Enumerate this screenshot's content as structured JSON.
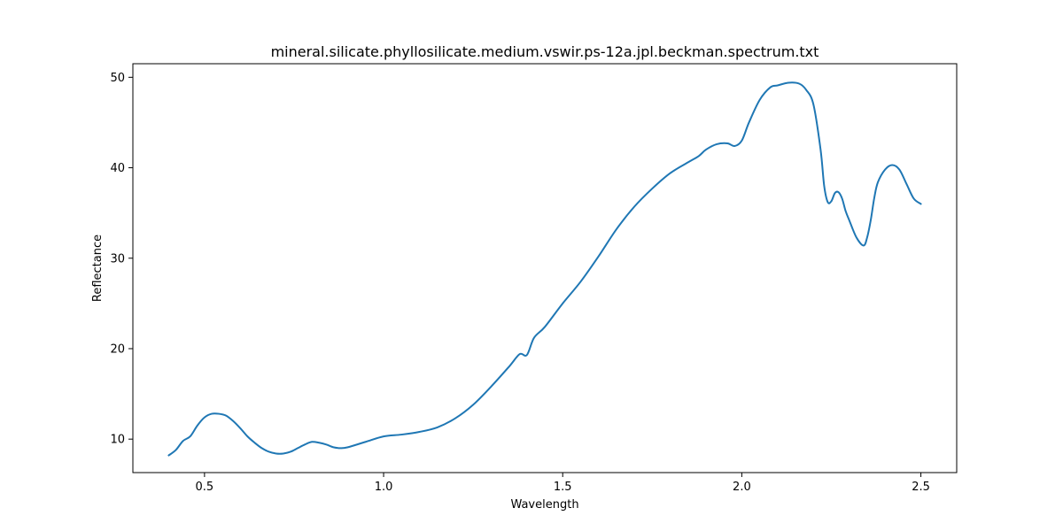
{
  "chart_data": {
    "type": "line",
    "title": "mineral.silicate.phyllosilicate.medium.vswir.ps-12a.jpl.beckman.spectrum.txt",
    "xlabel": "Wavelength",
    "ylabel": "Reflectance",
    "xlim": [
      0.3,
      2.6
    ],
    "ylim": [
      6.3,
      51.5
    ],
    "xticks": [
      0.5,
      1.0,
      1.5,
      2.0,
      2.5
    ],
    "xtick_labels": [
      "0.5",
      "1.0",
      "1.5",
      "2.0",
      "2.5"
    ],
    "yticks": [
      10,
      20,
      30,
      40,
      50
    ],
    "ytick_labels": [
      "10",
      "20",
      "30",
      "40",
      "50"
    ],
    "grid": false,
    "series": [
      {
        "color": "#1f77b4",
        "x": [
          0.4,
          0.42,
          0.44,
          0.46,
          0.48,
          0.5,
          0.52,
          0.54,
          0.56,
          0.58,
          0.6,
          0.62,
          0.64,
          0.66,
          0.68,
          0.7,
          0.72,
          0.74,
          0.76,
          0.78,
          0.8,
          0.82,
          0.84,
          0.86,
          0.88,
          0.9,
          0.95,
          1.0,
          1.05,
          1.1,
          1.15,
          1.2,
          1.25,
          1.3,
          1.35,
          1.38,
          1.4,
          1.42,
          1.45,
          1.5,
          1.55,
          1.6,
          1.65,
          1.7,
          1.75,
          1.8,
          1.85,
          1.88,
          1.9,
          1.93,
          1.96,
          1.98,
          2.0,
          2.02,
          2.05,
          2.08,
          2.1,
          2.13,
          2.16,
          2.18,
          2.2,
          2.22,
          2.23,
          2.24,
          2.25,
          2.26,
          2.27,
          2.28,
          2.29,
          2.3,
          2.32,
          2.34,
          2.35,
          2.36,
          2.37,
          2.38,
          2.4,
          2.42,
          2.44,
          2.46,
          2.48,
          2.5
        ],
        "y": [
          8.2,
          8.8,
          9.8,
          10.3,
          11.5,
          12.4,
          12.8,
          12.8,
          12.6,
          12.0,
          11.2,
          10.3,
          9.6,
          9.0,
          8.6,
          8.4,
          8.4,
          8.6,
          9.0,
          9.4,
          9.7,
          9.6,
          9.4,
          9.1,
          9.0,
          9.1,
          9.7,
          10.3,
          10.5,
          10.8,
          11.3,
          12.3,
          13.8,
          15.8,
          18.0,
          19.4,
          19.3,
          21.2,
          22.4,
          25.0,
          27.4,
          30.2,
          33.2,
          35.7,
          37.7,
          39.4,
          40.6,
          41.3,
          42.0,
          42.6,
          42.7,
          42.4,
          43.0,
          45.0,
          47.5,
          48.9,
          49.1,
          49.4,
          49.3,
          48.6,
          47.0,
          42.0,
          38.0,
          36.2,
          36.3,
          37.2,
          37.3,
          36.6,
          35.2,
          34.2,
          32.3,
          31.4,
          32.3,
          34.2,
          36.7,
          38.4,
          39.8,
          40.3,
          39.8,
          38.2,
          36.6,
          36.0
        ]
      }
    ]
  }
}
